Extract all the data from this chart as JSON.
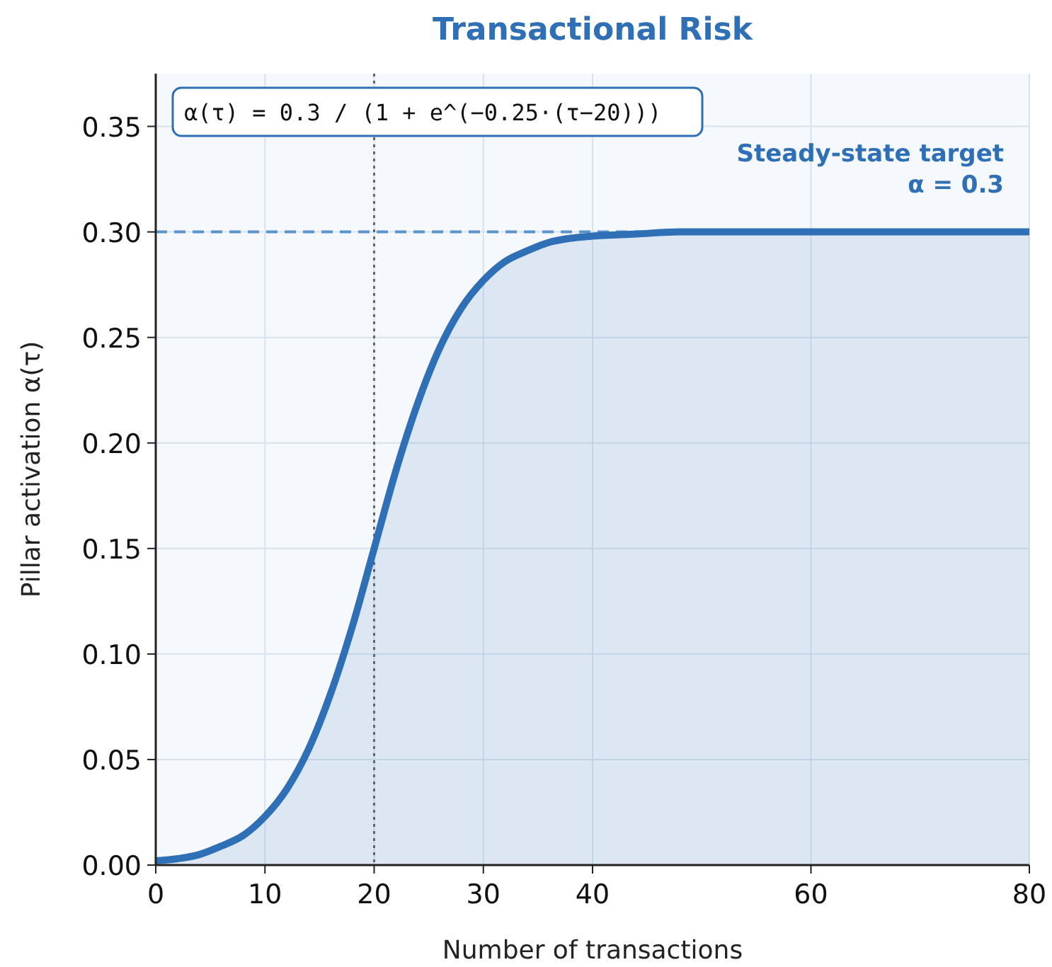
{
  "chart_data": {
    "type": "area",
    "title": "Transactional Risk",
    "xlabel": "Number of transactions",
    "ylabel": "Pillar activation  α(τ)",
    "x": [
      0,
      2,
      4,
      6,
      8,
      10,
      12,
      14,
      16,
      18,
      20,
      22,
      24,
      26,
      28,
      30,
      32,
      34,
      36,
      38,
      40,
      44,
      48,
      52,
      56,
      60,
      64,
      68,
      72,
      76,
      80
    ],
    "series": [
      {
        "color": "#2e6fb5",
        "values": [
          0.002,
          0.003,
          0.005,
          0.009,
          0.014,
          0.023,
          0.036,
          0.055,
          0.081,
          0.113,
          0.15,
          0.187,
          0.219,
          0.245,
          0.264,
          0.277,
          0.286,
          0.291,
          0.295,
          0.297,
          0.298,
          0.299,
          0.3,
          0.3,
          0.3,
          0.3,
          0.3,
          0.3,
          0.3,
          0.3,
          0.3
        ]
      }
    ],
    "xlim": [
      0,
      80
    ],
    "xticks": [
      0,
      10,
      20,
      30,
      40,
      60,
      80
    ],
    "ylim": [
      0,
      0.375
    ],
    "yticks": [
      {
        "value": 0,
        "label": "0.00"
      },
      {
        "value": 0.05,
        "label": "0.05"
      },
      {
        "value": 0.1,
        "label": "0.10"
      },
      {
        "value": 0.15,
        "label": "0.15"
      },
      {
        "value": 0.2,
        "label": "0.20"
      },
      {
        "value": 0.25,
        "label": "0.25"
      },
      {
        "value": 0.3,
        "label": "0.30"
      },
      {
        "value": 0.35,
        "label": "0.35"
      }
    ],
    "grid": true,
    "line_style": "solid",
    "ref_lines": [
      {
        "axis": "y",
        "value": 0.3,
        "label": "Steady-state target\nα = 0.3",
        "color": "#5b93cc",
        "line_style": "dashed"
      },
      {
        "axis": "x",
        "value": 20,
        "color": "#666666",
        "line_style": "dotted"
      }
    ],
    "annotations": [
      "α(τ) = 0.3 / (1 + e^(−0.25·(τ−20)))"
    ]
  }
}
